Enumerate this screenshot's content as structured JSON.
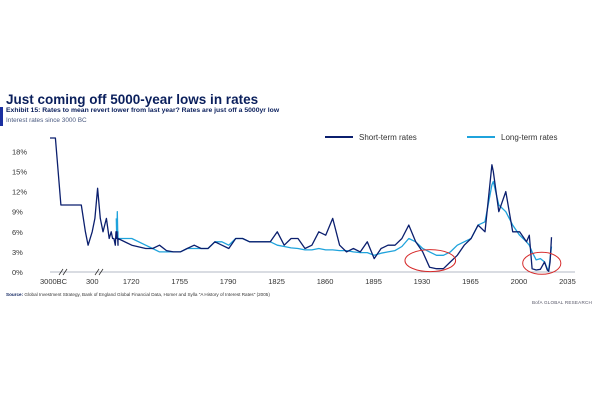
{
  "header": {
    "title": "Just coming off 5000-year lows in rates",
    "exhibit": "Exhibit 15: Rates to mean revert lower from last year? Rates are just off a 5000yr low",
    "subtitle": "Interest rates since 3000 BC"
  },
  "footer": {
    "source_label": "Source:",
    "source_text": "Global Investment Strategy, Bank of England Global Financial Data, Homer and Sylla \"A History of Interest Rates\" (2005)",
    "brand": "BofA GLOBAL RESEARCH"
  },
  "colors": {
    "short_term": "#0b1f6e",
    "long_term": "#1fa3dc",
    "highlight": "#d62a2a",
    "axis": "#9aa0b0",
    "text": "#0a1f5c"
  },
  "chart_data": {
    "type": "line",
    "title": "Just coming off 5000-year lows in rates",
    "xlabel": "",
    "ylabel": "",
    "ylim": [
      0,
      20
    ],
    "y_ticks": [
      "0%",
      "3%",
      "6%",
      "9%",
      "12%",
      "15%",
      "18%"
    ],
    "y_tick_values": [
      0,
      3,
      6,
      9,
      12,
      15,
      18
    ],
    "x_ticks": [
      "3000BC",
      "300",
      "1720",
      "1755",
      "1790",
      "1825",
      "1860",
      "1895",
      "1930",
      "1965",
      "2000",
      "2035"
    ],
    "legend_position": "top-right",
    "grid": false,
    "highlights": [
      {
        "x_from": 1923,
        "x_to": 1948,
        "y_center": 1.7
      },
      {
        "x_from": 2008,
        "x_to": 2024,
        "y_center": 1.3
      }
    ],
    "series": [
      {
        "name": "Short-term rates",
        "x": [
          "3000BC",
          "2500BC",
          "2000BC",
          "1500BC",
          "1000BC",
          "500BC",
          "200BC",
          "1AD",
          "100",
          "200",
          "250",
          "300",
          "400",
          "500",
          "700",
          "900",
          "1000",
          "1100",
          "1200",
          "1300",
          "1350",
          "1400",
          "1500",
          "1550",
          "1600",
          "1650",
          "1700",
          1710,
          1720,
          1730,
          1735,
          1740,
          1745,
          1750,
          1755,
          1760,
          1765,
          1770,
          1775,
          1780,
          1785,
          1790,
          1795,
          1800,
          1805,
          1810,
          1815,
          1820,
          1825,
          1830,
          1835,
          1840,
          1845,
          1850,
          1855,
          1860,
          1865,
          1870,
          1875,
          1880,
          1885,
          1890,
          1895,
          1900,
          1905,
          1910,
          1915,
          1920,
          1925,
          1930,
          1935,
          1940,
          1945,
          1950,
          1955,
          1960,
          1965,
          1970,
          1975,
          1980,
          1981,
          1985,
          1990,
          1995,
          2000,
          2005,
          2007,
          2009,
          2012,
          2015,
          2018,
          2020,
          2021,
          2022,
          2023
        ],
        "values": [
          20,
          20,
          10,
          10,
          10,
          10,
          10,
          6,
          4,
          6,
          8,
          12.5,
          8,
          6,
          8,
          5,
          6,
          5,
          5,
          4,
          6,
          5,
          5,
          6,
          5,
          5,
          4,
          5,
          4,
          3.5,
          3.5,
          4,
          3.2,
          3,
          3,
          3.5,
          4,
          3.5,
          3.5,
          4.5,
          4,
          3.5,
          5,
          5,
          4.5,
          4.5,
          4.5,
          4.5,
          6,
          4,
          5,
          5,
          3.5,
          4,
          6,
          5.5,
          8,
          4,
          3,
          3.5,
          3,
          4.5,
          2,
          3.5,
          4,
          4,
          5,
          7,
          4.5,
          3,
          0.7,
          0.5,
          0.5,
          1.5,
          2.5,
          4,
          5,
          7,
          6,
          16,
          15,
          9,
          12,
          6,
          6,
          4.5,
          5.5,
          0.5,
          0.3,
          0.4,
          1.5,
          0.3,
          0.1,
          1.5,
          5.2
        ]
      },
      {
        "name": "Long-term rates",
        "x": [
          "3000BC",
          "2500BC",
          "2000BC",
          "1500BC",
          "1000BC",
          "500BC",
          "200BC",
          "1AD",
          "100",
          "200",
          "250",
          "300",
          "400",
          "500",
          "700",
          "900",
          "1000",
          "1100",
          "1200",
          "1300",
          "1350",
          "1400",
          "1500",
          "1550",
          "1600",
          "1650",
          "1700",
          1710,
          1720,
          1730,
          1735,
          1740,
          1745,
          1750,
          1755,
          1760,
          1765,
          1770,
          1775,
          1780,
          1785,
          1790,
          1795,
          1800,
          1805,
          1810,
          1815,
          1820,
          1825,
          1830,
          1835,
          1840,
          1845,
          1850,
          1855,
          1860,
          1865,
          1870,
          1875,
          1880,
          1885,
          1890,
          1895,
          1900,
          1905,
          1910,
          1915,
          1920,
          1925,
          1930,
          1935,
          1940,
          1945,
          1950,
          1955,
          1960,
          1965,
          1970,
          1975,
          1980,
          1981,
          1985,
          1990,
          1995,
          2000,
          2005,
          2007,
          2009,
          2012,
          2015,
          2018,
          2020,
          2021,
          2022,
          2023
        ],
        "values": [
          null,
          null,
          null,
          null,
          null,
          null,
          null,
          null,
          null,
          null,
          null,
          null,
          null,
          null,
          null,
          null,
          null,
          null,
          null,
          null,
          null,
          8,
          6,
          6,
          9,
          6,
          6,
          5,
          5,
          4,
          3.5,
          3,
          3,
          3,
          3,
          3.5,
          3.5,
          3.5,
          3.5,
          4.5,
          4.5,
          4,
          5,
          5,
          4.5,
          4.5,
          4.5,
          4.5,
          4,
          3.8,
          3.6,
          3.5,
          3.3,
          3.3,
          3.5,
          3.3,
          3.3,
          3.2,
          3.2,
          3,
          2.9,
          2.9,
          2.5,
          2.8,
          3,
          3.2,
          3.8,
          5,
          4.5,
          3.5,
          3,
          2.5,
          2.5,
          3,
          4,
          4.5,
          5,
          7,
          7.5,
          13,
          13.5,
          10,
          9,
          7,
          5.5,
          4.5,
          4,
          3,
          1.8,
          2,
          1.5,
          0.5,
          0.3,
          2,
          3.8
        ]
      }
    ]
  }
}
